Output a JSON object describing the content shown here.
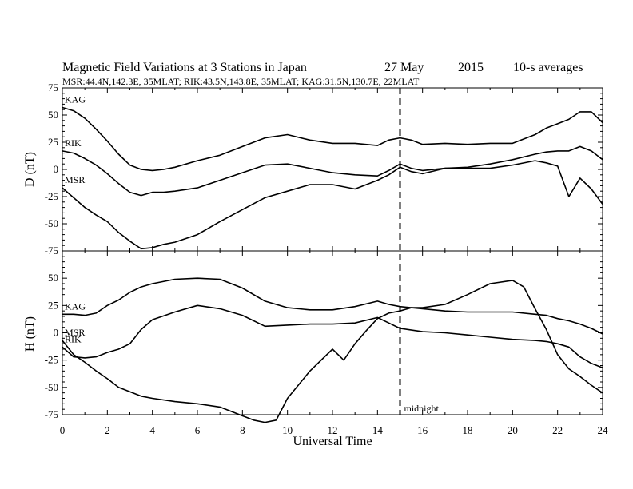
{
  "chart_data": {
    "type": "line",
    "title_parts": [
      "Magnetic Field Variations at 3 Stations in Japan",
      "27 May",
      "2015",
      "10-s averages"
    ],
    "subtitle": "MSR:44.4N,142.3E, 35MLAT;  RIK:43.5N,143.8E, 35MLAT;  KAG:31.5N,130.7E, 22MLAT",
    "xlabel": "Universal Time",
    "xlim": [
      0,
      24
    ],
    "xticks": [
      "0",
      "2",
      "4",
      "6",
      "8",
      "10",
      "12",
      "14",
      "16",
      "18",
      "20",
      "22",
      "24"
    ],
    "marker": {
      "x": 15,
      "label": "midnight"
    },
    "panels": [
      {
        "ylabel": "D (nT)",
        "ylim": [
          -75,
          75
        ],
        "yticks": [
          "75",
          "50",
          "25",
          "0",
          "-25",
          "-50",
          "-75"
        ],
        "series": [
          {
            "name": "KAG",
            "x": [
              0,
              0.5,
              1,
              1.5,
              2,
              2.5,
              3,
              3.5,
              4,
              4.5,
              5,
              6,
              7,
              8,
              9,
              10,
              11,
              12,
              13,
              14,
              14.5,
              15,
              15.5,
              16,
              17,
              18,
              19,
              20,
              21,
              21.5,
              22,
              22.5,
              23,
              23.5,
              24
            ],
            "y": [
              57,
              54,
              47,
              37,
              26,
              14,
              4,
              0,
              -1,
              0,
              2,
              8,
              13,
              21,
              29,
              32,
              27,
              24,
              24,
              22,
              27,
              29,
              27,
              23,
              24,
              23,
              24,
              24,
              32,
              38,
              42,
              46,
              53,
              53,
              43
            ]
          },
          {
            "name": "RIK",
            "x": [
              0,
              0.5,
              1,
              1.5,
              2,
              2.5,
              3,
              3.5,
              4,
              4.5,
              5,
              6,
              7,
              8,
              9,
              10,
              11,
              12,
              13,
              14,
              14.5,
              15,
              15.5,
              16,
              17,
              18,
              19,
              20,
              21,
              21.5,
              22,
              22.5,
              23,
              23.5,
              24
            ],
            "y": [
              17,
              15,
              10,
              4,
              -4,
              -13,
              -21,
              -24,
              -21,
              -21,
              -20,
              -17,
              -10,
              -3,
              4,
              5,
              1,
              -3,
              -5,
              -6,
              -1,
              5,
              1,
              -1,
              1,
              2,
              5,
              9,
              14,
              16,
              17,
              17,
              21,
              17,
              9
            ]
          },
          {
            "name": "MSR",
            "x": [
              0,
              0.5,
              1,
              1.5,
              2,
              2.5,
              3,
              3.5,
              4,
              4.5,
              5,
              6,
              7,
              8,
              9,
              10,
              11,
              12,
              13,
              14,
              14.5,
              15,
              15.5,
              16,
              17,
              18,
              19,
              20,
              21,
              21.5,
              22,
              22.5,
              23,
              23.5,
              24
            ],
            "y": [
              -17,
              -26,
              -35,
              -42,
              -48,
              -58,
              -66,
              -73,
              -72,
              -69,
              -67,
              -60,
              -48,
              -37,
              -26,
              -20,
              -14,
              -14,
              -18,
              -10,
              -5,
              2,
              -2,
              -4,
              1,
              1,
              1,
              4,
              8,
              6,
              3,
              -25,
              -8,
              -18,
              -32
            ]
          }
        ]
      },
      {
        "ylabel": "H (nT)",
        "ylim": [
          -75,
          75
        ],
        "yticks": [
          "75",
          "50",
          "25",
          "0",
          "-25",
          "-50",
          "-75"
        ],
        "series": [
          {
            "name": "KAG",
            "x": [
              0,
              0.5,
              1,
              1.5,
              2,
              2.5,
              3,
              3.5,
              4,
              5,
              6,
              7,
              8,
              9,
              10,
              11,
              12,
              13,
              14,
              14.5,
              15,
              16,
              17,
              18,
              19,
              20,
              21,
              21.5,
              22,
              22.5,
              23,
              23.5,
              24
            ],
            "y": [
              17,
              17,
              16,
              18,
              25,
              30,
              37,
              42,
              45,
              49,
              50,
              49,
              41,
              29,
              23,
              21,
              21,
              24,
              29,
              26,
              24,
              22,
              20,
              19,
              19,
              19,
              17,
              16,
              13,
              11,
              8,
              4,
              -1
            ]
          },
          {
            "name": "RIK",
            "x": [
              0,
              0.5,
              1,
              1.5,
              2,
              2.5,
              3,
              3.5,
              4,
              5,
              6,
              7,
              8,
              9,
              10,
              11,
              12,
              13,
              14,
              14.5,
              15,
              16,
              17,
              18,
              19,
              20,
              21,
              21.5,
              22,
              22.5,
              23,
              23.5,
              24
            ],
            "y": [
              -13,
              -22,
              -23,
              -22,
              -18,
              -15,
              -10,
              3,
              12,
              19,
              25,
              22,
              16,
              6,
              7,
              8,
              8,
              9,
              14,
              9,
              4,
              1,
              0,
              -2,
              -4,
              -6,
              -7,
              -8,
              -10,
              -13,
              -22,
              -28,
              -32
            ]
          },
          {
            "name": "MSR",
            "x": [
              0,
              0.5,
              1,
              1.5,
              2,
              2.5,
              3,
              3.5,
              4,
              5,
              6,
              7,
              8,
              8.5,
              9,
              9.5,
              10,
              11,
              12,
              12.5,
              13,
              13.5,
              14,
              14.5,
              15,
              15.5,
              16,
              17,
              18,
              19,
              20,
              20.5,
              21,
              21.5,
              22,
              22.5,
              23,
              23.5,
              24
            ],
            "y": [
              -7,
              -20,
              -27,
              -35,
              -42,
              -50,
              -54,
              -58,
              -60,
              -63,
              -65,
              -68,
              -76,
              -80,
              -82,
              -80,
              -60,
              -35,
              -15,
              -25,
              -10,
              2,
              13,
              18,
              20,
              23,
              23,
              26,
              35,
              45,
              48,
              42,
              22,
              3,
              -20,
              -33,
              -40,
              -48,
              -55
            ]
          }
        ]
      }
    ]
  }
}
